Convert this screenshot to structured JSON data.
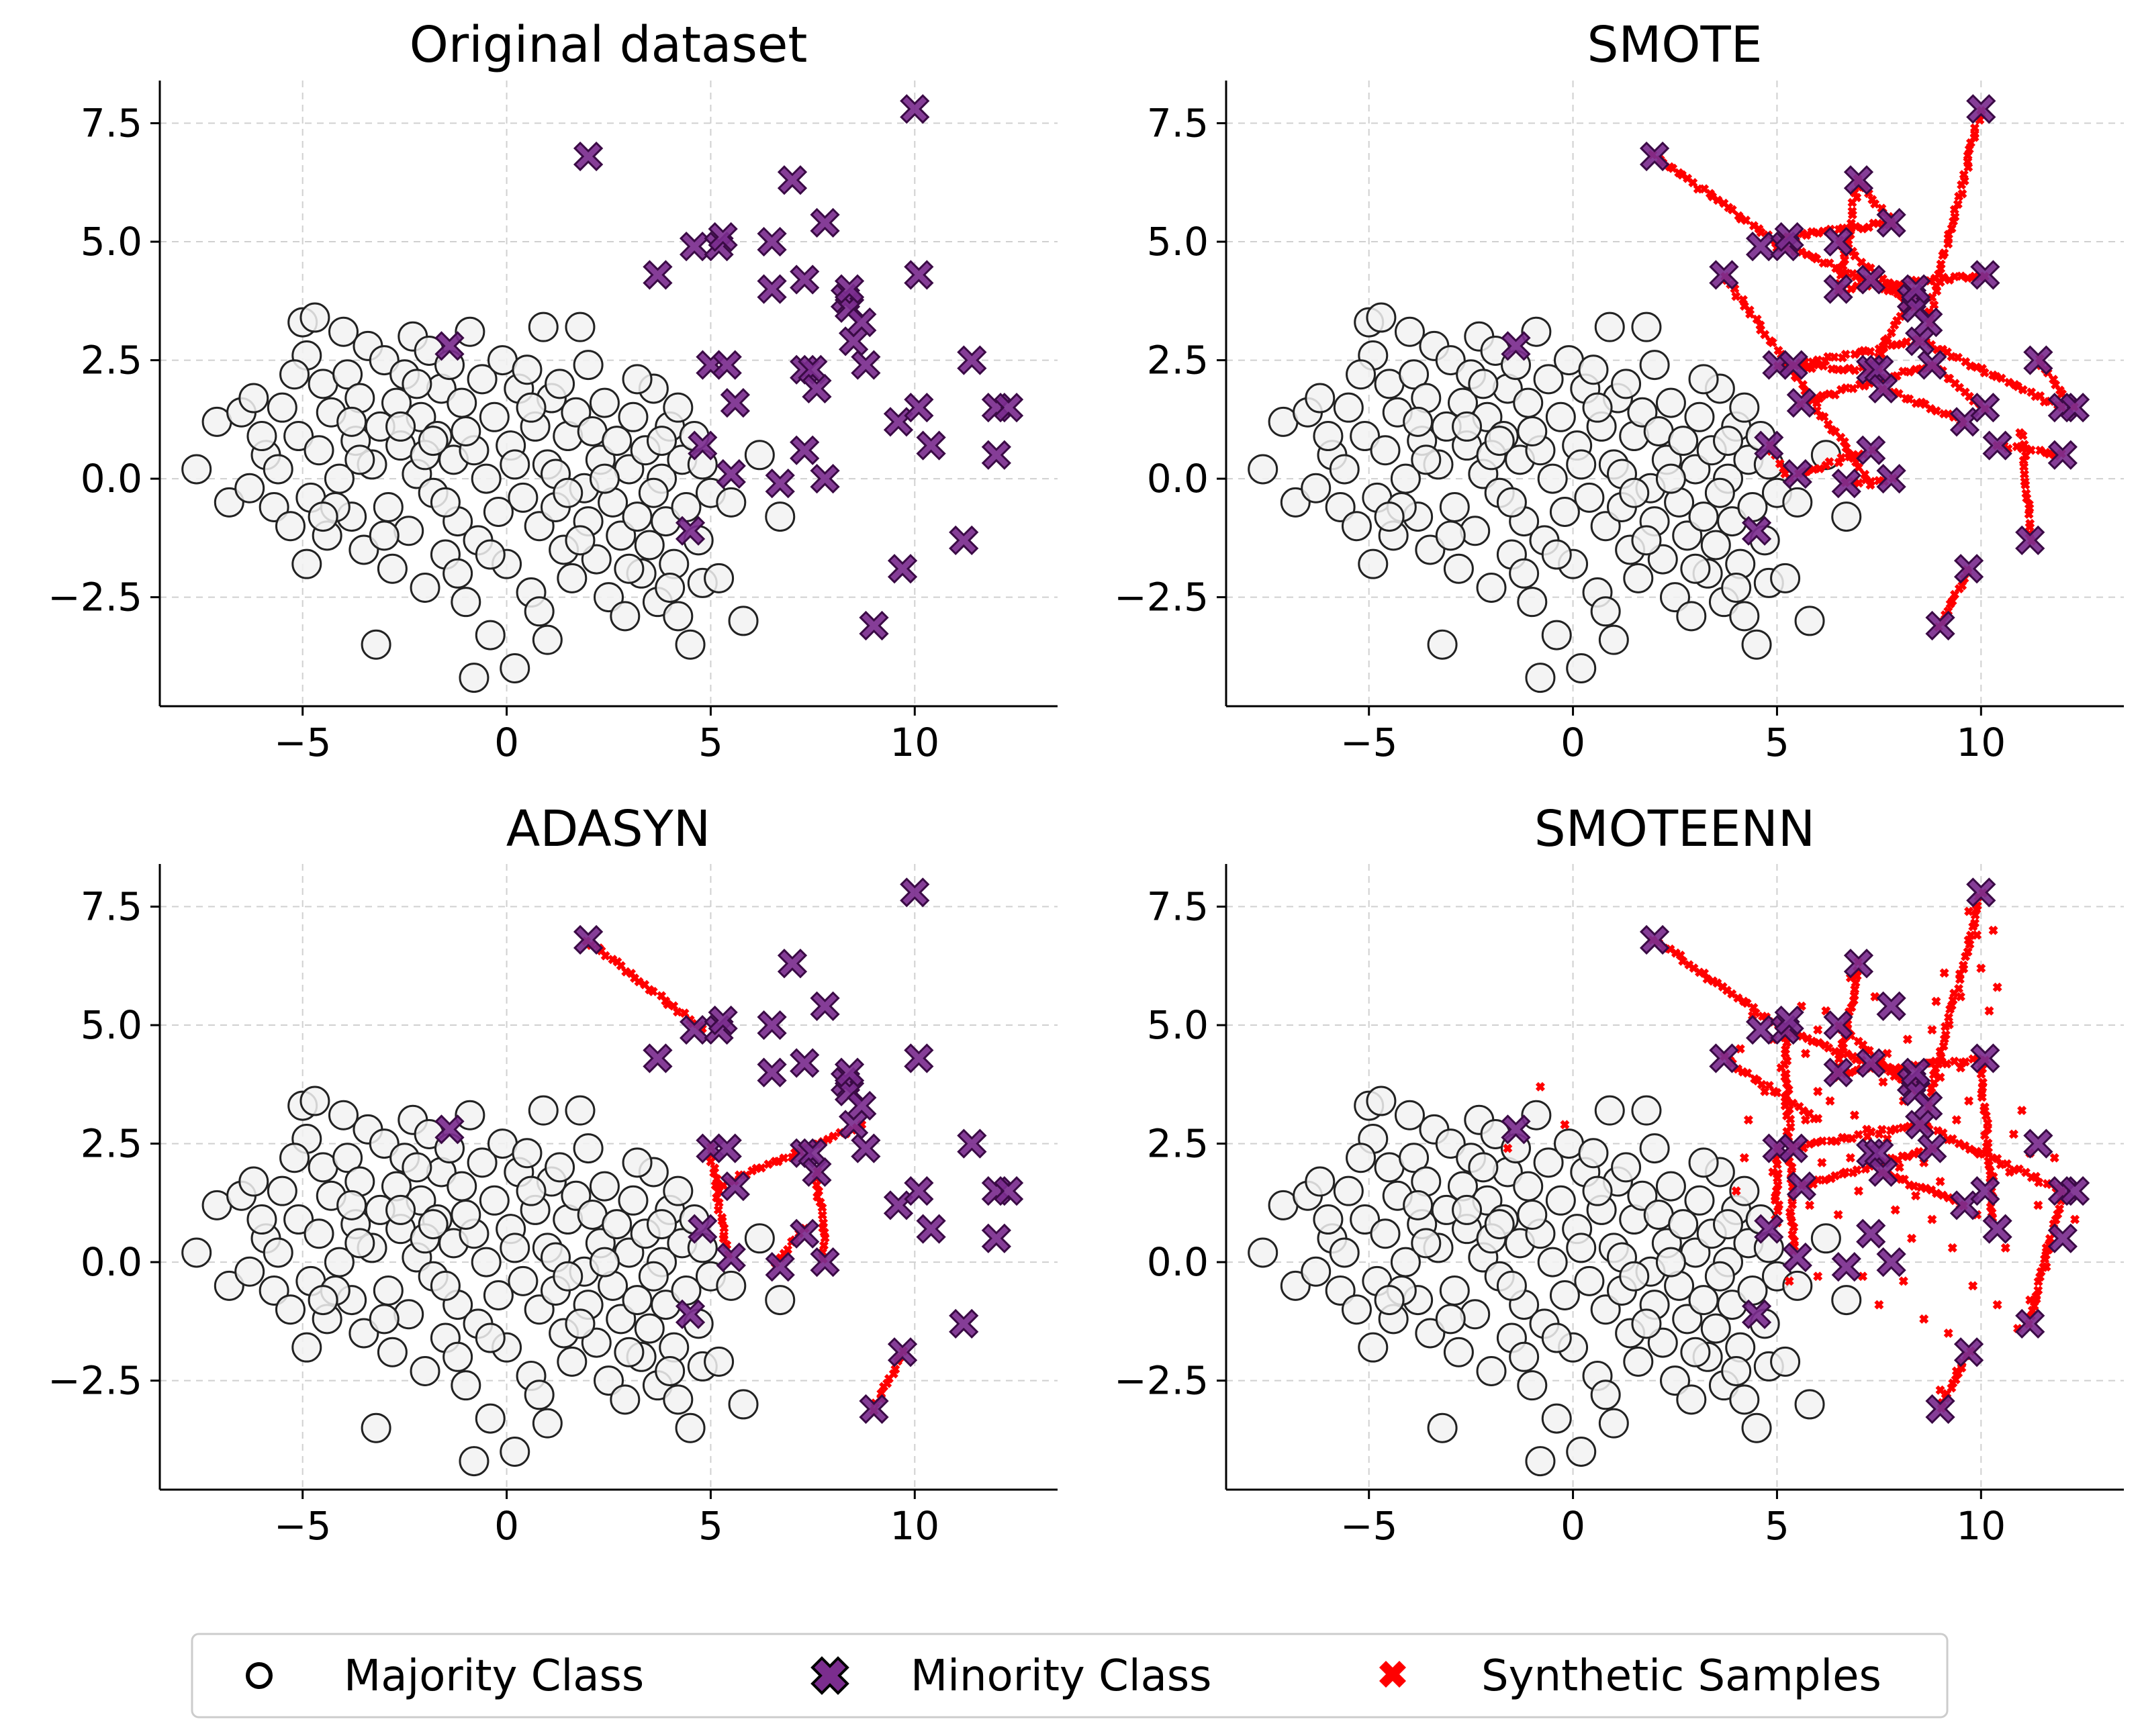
{
  "chart_data": {
    "type": "scatter",
    "colors": {
      "majority_fill": "#f2f2f2",
      "majority_edge": "#222222",
      "minority_fill": "#7b2d8e",
      "minority_edge": "#3a0a45",
      "synthetic": "#ff0000"
    },
    "legend": {
      "items": [
        "Majority Class",
        "Minority Class",
        "Synthetic Samples"
      ],
      "position": "bottom-center"
    },
    "axes": {
      "xlim": [
        -8.5,
        13.5
      ],
      "ylim": [
        -4.8,
        8.4
      ],
      "xticks": [
        -5,
        0,
        5,
        10
      ],
      "yticks": [
        -2.5,
        0.0,
        2.5,
        5.0,
        7.5
      ],
      "xtick_labels": [
        "−5",
        "0",
        "5",
        "10"
      ],
      "ytick_labels": [
        "−2.5",
        "0.0",
        "2.5",
        "5.0",
        "7.5"
      ],
      "grid": true
    },
    "majority": [
      [
        -7.6,
        0.2
      ],
      [
        -7.1,
        1.2
      ],
      [
        -6.8,
        -0.5
      ],
      [
        -6.5,
        1.4
      ],
      [
        -6.3,
        -0.2
      ],
      [
        -6.2,
        1.7
      ],
      [
        -5.9,
        0.5
      ],
      [
        -5.7,
        -0.6
      ],
      [
        -5.5,
        1.5
      ],
      [
        -5.3,
        -1.0
      ],
      [
        -5.1,
        0.9
      ],
      [
        -5.0,
        3.3
      ],
      [
        -4.9,
        -1.8
      ],
      [
        -4.9,
        2.6
      ],
      [
        -4.8,
        -0.4
      ],
      [
        -4.7,
        3.4
      ],
      [
        -4.6,
        0.6
      ],
      [
        -4.5,
        2.0
      ],
      [
        -4.4,
        -1.2
      ],
      [
        -4.3,
        1.4
      ],
      [
        -4.1,
        0.0
      ],
      [
        -4.0,
        3.1
      ],
      [
        -3.9,
        2.2
      ],
      [
        -3.8,
        -0.8
      ],
      [
        -3.7,
        0.8
      ],
      [
        -3.6,
        1.7
      ],
      [
        -3.5,
        -1.5
      ],
      [
        -3.4,
        2.8
      ],
      [
        -3.3,
        0.3
      ],
      [
        -3.2,
        -3.5
      ],
      [
        -3.1,
        1.1
      ],
      [
        -3.0,
        2.5
      ],
      [
        -2.9,
        -0.6
      ],
      [
        -2.8,
        -1.9
      ],
      [
        -2.7,
        1.6
      ],
      [
        -2.6,
        0.7
      ],
      [
        -2.5,
        2.2
      ],
      [
        -2.4,
        -1.1
      ],
      [
        -2.3,
        3.0
      ],
      [
        -2.2,
        0.1
      ],
      [
        -2.1,
        1.3
      ],
      [
        -2.0,
        -2.3
      ],
      [
        -1.9,
        2.7
      ],
      [
        -1.8,
        -0.3
      ],
      [
        -1.7,
        0.9
      ],
      [
        -1.6,
        1.9
      ],
      [
        -1.5,
        -1.6
      ],
      [
        -1.4,
        2.4
      ],
      [
        -1.3,
        0.4
      ],
      [
        -1.2,
        -0.9
      ],
      [
        -1.1,
        1.6
      ],
      [
        -1.0,
        -2.6
      ],
      [
        -0.9,
        3.1
      ],
      [
        -0.8,
        0.6
      ],
      [
        -0.8,
        -4.2
      ],
      [
        -0.7,
        -1.3
      ],
      [
        -0.6,
        2.1
      ],
      [
        -0.5,
        0.0
      ],
      [
        -0.4,
        -3.3
      ],
      [
        -0.3,
        1.3
      ],
      [
        -0.2,
        -0.7
      ],
      [
        -0.1,
        2.5
      ],
      [
        0.0,
        -1.8
      ],
      [
        0.1,
        0.7
      ],
      [
        0.2,
        -4.0
      ],
      [
        0.3,
        1.9
      ],
      [
        0.4,
        -0.4
      ],
      [
        0.5,
        2.3
      ],
      [
        0.6,
        -2.4
      ],
      [
        0.7,
        1.1
      ],
      [
        0.8,
        -1.0
      ],
      [
        0.9,
        3.2
      ],
      [
        1.0,
        0.3
      ],
      [
        1.0,
        -3.4
      ],
      [
        1.1,
        1.7
      ],
      [
        1.2,
        -0.6
      ],
      [
        1.3,
        2.0
      ],
      [
        1.4,
        -1.5
      ],
      [
        1.5,
        0.9
      ],
      [
        1.6,
        -2.1
      ],
      [
        1.7,
        1.4
      ],
      [
        1.8,
        3.2
      ],
      [
        1.9,
        -0.2
      ],
      [
        2.0,
        -0.9
      ],
      [
        2.1,
        1.0
      ],
      [
        2.2,
        -1.7
      ],
      [
        2.3,
        0.4
      ],
      [
        2.4,
        1.6
      ],
      [
        2.5,
        -2.5
      ],
      [
        2.6,
        -0.5
      ],
      [
        2.7,
        0.8
      ],
      [
        2.8,
        -1.2
      ],
      [
        2.9,
        -2.9
      ],
      [
        3.0,
        0.2
      ],
      [
        3.1,
        1.3
      ],
      [
        3.2,
        -0.8
      ],
      [
        3.3,
        -2.0
      ],
      [
        3.4,
        0.6
      ],
      [
        3.5,
        -1.4
      ],
      [
        3.6,
        1.9
      ],
      [
        3.7,
        -2.6
      ],
      [
        3.8,
        0.0
      ],
      [
        3.9,
        -0.9
      ],
      [
        4.0,
        1.1
      ],
      [
        4.1,
        -1.8
      ],
      [
        4.2,
        -2.9
      ],
      [
        4.3,
        0.4
      ],
      [
        4.4,
        -0.6
      ],
      [
        4.5,
        -3.5
      ],
      [
        4.6,
        0.9
      ],
      [
        4.7,
        -1.3
      ],
      [
        4.8,
        -2.2
      ],
      [
        5.0,
        -0.3
      ],
      [
        5.2,
        -2.1
      ],
      [
        5.5,
        -0.5
      ],
      [
        5.8,
        -3.0
      ],
      [
        6.2,
        0.5
      ],
      [
        6.7,
        -0.8
      ],
      [
        -6.0,
        0.9
      ],
      [
        -5.6,
        0.2
      ],
      [
        -5.2,
        2.2
      ],
      [
        -4.2,
        -0.6
      ],
      [
        -3.6,
        0.4
      ],
      [
        -3.0,
        -1.2
      ],
      [
        -2.6,
        1.1
      ],
      [
        -2.0,
        0.5
      ],
      [
        -1.5,
        -0.5
      ],
      [
        -1.0,
        1.0
      ],
      [
        -0.4,
        -1.6
      ],
      [
        0.2,
        0.3
      ],
      [
        0.6,
        1.5
      ],
      [
        1.2,
        0.1
      ],
      [
        1.8,
        -1.3
      ],
      [
        2.4,
        0.0
      ],
      [
        3.0,
        -1.9
      ],
      [
        3.6,
        -0.3
      ],
      [
        4.2,
        1.5
      ],
      [
        4.8,
        0.3
      ],
      [
        -3.8,
        1.2
      ],
      [
        -2.2,
        2.0
      ],
      [
        -1.2,
        -2.0
      ],
      [
        0.8,
        -2.8
      ],
      [
        2.0,
        2.4
      ],
      [
        3.2,
        2.1
      ],
      [
        4.0,
        -2.3
      ],
      [
        -4.5,
        -0.8
      ],
      [
        -1.8,
        0.8
      ],
      [
        1.5,
        -0.3
      ],
      [
        3.8,
        0.8
      ]
    ],
    "minority": [
      [
        -1.4,
        2.8
      ],
      [
        2.0,
        6.8
      ],
      [
        3.7,
        4.3
      ],
      [
        4.5,
        -1.1
      ],
      [
        4.6,
        4.9
      ],
      [
        4.8,
        0.7
      ],
      [
        5.0,
        2.4
      ],
      [
        5.2,
        4.9
      ],
      [
        5.3,
        5.1
      ],
      [
        5.4,
        2.4
      ],
      [
        5.5,
        0.1
      ],
      [
        5.6,
        1.6
      ],
      [
        6.5,
        4.0
      ],
      [
        6.5,
        5.0
      ],
      [
        6.7,
        -0.1
      ],
      [
        7.0,
        6.3
      ],
      [
        7.3,
        2.3
      ],
      [
        7.3,
        4.2
      ],
      [
        7.3,
        0.6
      ],
      [
        7.5,
        2.3
      ],
      [
        7.6,
        1.9
      ],
      [
        7.8,
        5.4
      ],
      [
        7.8,
        0.0
      ],
      [
        8.3,
        3.8
      ],
      [
        8.4,
        3.6
      ],
      [
        8.4,
        4.0
      ],
      [
        8.5,
        2.9
      ],
      [
        8.7,
        3.3
      ],
      [
        8.8,
        2.4
      ],
      [
        9.0,
        -3.1
      ],
      [
        9.6,
        1.2
      ],
      [
        9.7,
        -1.9
      ],
      [
        10.0,
        7.8
      ],
      [
        10.1,
        4.3
      ],
      [
        10.1,
        1.5
      ],
      [
        10.4,
        0.7
      ],
      [
        11.2,
        -1.3
      ],
      [
        11.4,
        2.5
      ],
      [
        12.0,
        1.5
      ],
      [
        12.0,
        0.5
      ],
      [
        12.3,
        1.5
      ]
    ],
    "panels": [
      {
        "title": "Original dataset",
        "method": "none",
        "segments": [],
        "scatter": []
      },
      {
        "title": "SMOTE",
        "method": "smote",
        "segments": [
          [
            2.0,
            6.8,
            5.0,
            5.0
          ],
          [
            5.0,
            4.9,
            5.3,
            5.1
          ],
          [
            5.2,
            4.9,
            8.3,
            3.8
          ],
          [
            6.5,
            4.0,
            10.1,
            4.3
          ],
          [
            6.5,
            5.0,
            8.4,
            3.6
          ],
          [
            7.0,
            6.3,
            6.5,
            4.0
          ],
          [
            7.0,
            6.3,
            7.8,
            5.4
          ],
          [
            7.8,
            5.4,
            5.3,
            5.1
          ],
          [
            10.0,
            7.8,
            8.7,
            3.3
          ],
          [
            5.4,
            2.4,
            8.5,
            2.9
          ],
          [
            5.6,
            1.6,
            8.8,
            2.4
          ],
          [
            5.0,
            2.4,
            7.5,
            2.3
          ],
          [
            7.3,
            2.3,
            8.4,
            4.0
          ],
          [
            7.6,
            1.9,
            9.6,
            1.2
          ],
          [
            8.5,
            2.9,
            12.0,
            1.5
          ],
          [
            12.3,
            1.5,
            11.4,
            2.5
          ],
          [
            12.0,
            0.5,
            10.4,
            0.7
          ],
          [
            10.1,
            1.5,
            8.8,
            2.4
          ],
          [
            9.0,
            -3.1,
            9.7,
            -1.9
          ],
          [
            4.8,
            0.7,
            5.3,
            0.0
          ],
          [
            5.5,
            0.1,
            7.3,
            0.6
          ],
          [
            6.7,
            -0.1,
            7.8,
            0.0
          ],
          [
            3.7,
            4.3,
            7.3,
            -0.1
          ],
          [
            11.2,
            -1.3,
            11.0,
            1.0
          ]
        ],
        "scatter": []
      },
      {
        "title": "ADASYN",
        "method": "adasyn",
        "segments": [
          [
            2.0,
            6.8,
            4.8,
            4.9
          ],
          [
            5.0,
            2.4,
            5.4,
            0.2
          ],
          [
            5.2,
            1.6,
            8.7,
            2.9
          ],
          [
            7.6,
            1.9,
            7.8,
            0.1
          ],
          [
            6.6,
            0.0,
            7.3,
            0.7
          ],
          [
            9.0,
            -3.1,
            9.7,
            -1.9
          ]
        ],
        "scatter": []
      },
      {
        "title": "SMOTEENN",
        "method": "smoteenn",
        "segments": [
          [
            2.0,
            6.8,
            5.0,
            5.0
          ],
          [
            5.2,
            4.9,
            8.3,
            3.8
          ],
          [
            6.5,
            4.0,
            10.1,
            4.3
          ],
          [
            6.5,
            5.0,
            8.4,
            3.6
          ],
          [
            7.0,
            6.3,
            6.5,
            4.0
          ],
          [
            10.0,
            7.8,
            8.7,
            3.3
          ],
          [
            5.4,
            2.4,
            8.5,
            2.9
          ],
          [
            5.6,
            1.6,
            8.8,
            2.4
          ],
          [
            7.6,
            1.9,
            9.6,
            1.2
          ],
          [
            8.5,
            2.9,
            12.0,
            1.5
          ],
          [
            9.0,
            -3.1,
            9.7,
            -1.9
          ],
          [
            12.0,
            1.5,
            11.2,
            -1.3
          ],
          [
            5.0,
            2.4,
            5.0,
            0.8
          ],
          [
            5.2,
            4.9,
            5.4,
            0.2
          ],
          [
            3.7,
            4.3,
            6.0,
            3.0
          ],
          [
            10.0,
            4.2,
            10.3,
            0.9
          ]
        ],
        "scatter": [
          [
            -0.8,
            3.7
          ],
          [
            -1.6,
            2.4
          ],
          [
            -0.2,
            2.9
          ],
          [
            4.1,
            4.5
          ],
          [
            4.4,
            5.2
          ],
          [
            4.9,
            4.7
          ],
          [
            5.7,
            4.4
          ],
          [
            6.0,
            3.6
          ],
          [
            6.3,
            3.4
          ],
          [
            6.9,
            3.1
          ],
          [
            7.2,
            2.8
          ],
          [
            7.7,
            2.6
          ],
          [
            8.1,
            3.4
          ],
          [
            8.6,
            2.1
          ],
          [
            9.0,
            1.7
          ],
          [
            9.3,
            2.6
          ],
          [
            9.7,
            3.4
          ],
          [
            10.3,
            1.8
          ],
          [
            10.7,
            1.9
          ],
          [
            11.2,
            2.3
          ],
          [
            6.1,
            2.1
          ],
          [
            5.8,
            1.2
          ],
          [
            6.5,
            1.0
          ],
          [
            7.0,
            1.5
          ],
          [
            7.9,
            1.1
          ],
          [
            8.3,
            0.5
          ],
          [
            8.8,
            0.9
          ],
          [
            9.3,
            0.3
          ],
          [
            9.8,
            -0.5
          ],
          [
            10.4,
            -0.9
          ],
          [
            10.9,
            -1.4
          ],
          [
            8.1,
            -0.4
          ],
          [
            7.5,
            -0.9
          ],
          [
            7.1,
            -0.3
          ],
          [
            8.6,
            -1.2
          ],
          [
            9.2,
            -1.5
          ],
          [
            9.4,
            -2.3
          ],
          [
            9.0,
            -2.7
          ],
          [
            11.2,
            -0.8
          ],
          [
            11.6,
            0.3
          ],
          [
            10.2,
            5.3
          ],
          [
            10.4,
            5.8
          ],
          [
            10.0,
            6.2
          ],
          [
            9.9,
            6.9
          ],
          [
            9.7,
            7.4
          ],
          [
            10.3,
            7.0
          ],
          [
            9.5,
            5.6
          ],
          [
            9.1,
            6.1
          ],
          [
            8.8,
            4.9
          ],
          [
            8.2,
            4.7
          ],
          [
            7.4,
            5.6
          ],
          [
            6.8,
            6.0
          ],
          [
            6.2,
            5.3
          ],
          [
            6.0,
            4.9
          ],
          [
            5.6,
            5.4
          ],
          [
            4.7,
            3.6
          ],
          [
            4.3,
            3.0
          ],
          [
            4.2,
            2.2
          ],
          [
            4.0,
            1.5
          ],
          [
            5.3,
            -0.4
          ],
          [
            6.0,
            -0.3
          ],
          [
            5.7,
            3.0
          ],
          [
            6.8,
            2.2
          ],
          [
            7.6,
            3.8
          ],
          [
            8.4,
            1.4
          ],
          [
            9.5,
            4.1
          ],
          [
            11.0,
            3.2
          ],
          [
            11.8,
            2.2
          ],
          [
            12.3,
            0.9
          ],
          [
            11.6,
            -0.1
          ],
          [
            10.6,
            0.3
          ],
          [
            9.9,
            1.0
          ],
          [
            9.0,
            3.9
          ],
          [
            8.9,
            5.5
          ],
          [
            7.7,
            4.4
          ],
          [
            6.4,
            3.9
          ],
          [
            5.2,
            3.3
          ],
          [
            4.9,
            1.9
          ],
          [
            5.1,
            4.1
          ],
          [
            6.6,
            4.6
          ],
          [
            7.3,
            4.1
          ],
          [
            8.0,
            2.0
          ],
          [
            8.7,
            4.2
          ],
          [
            9.4,
            3.0
          ],
          [
            10.8,
            2.7
          ],
          [
            11.4,
            1.2
          ]
        ]
      }
    ]
  }
}
